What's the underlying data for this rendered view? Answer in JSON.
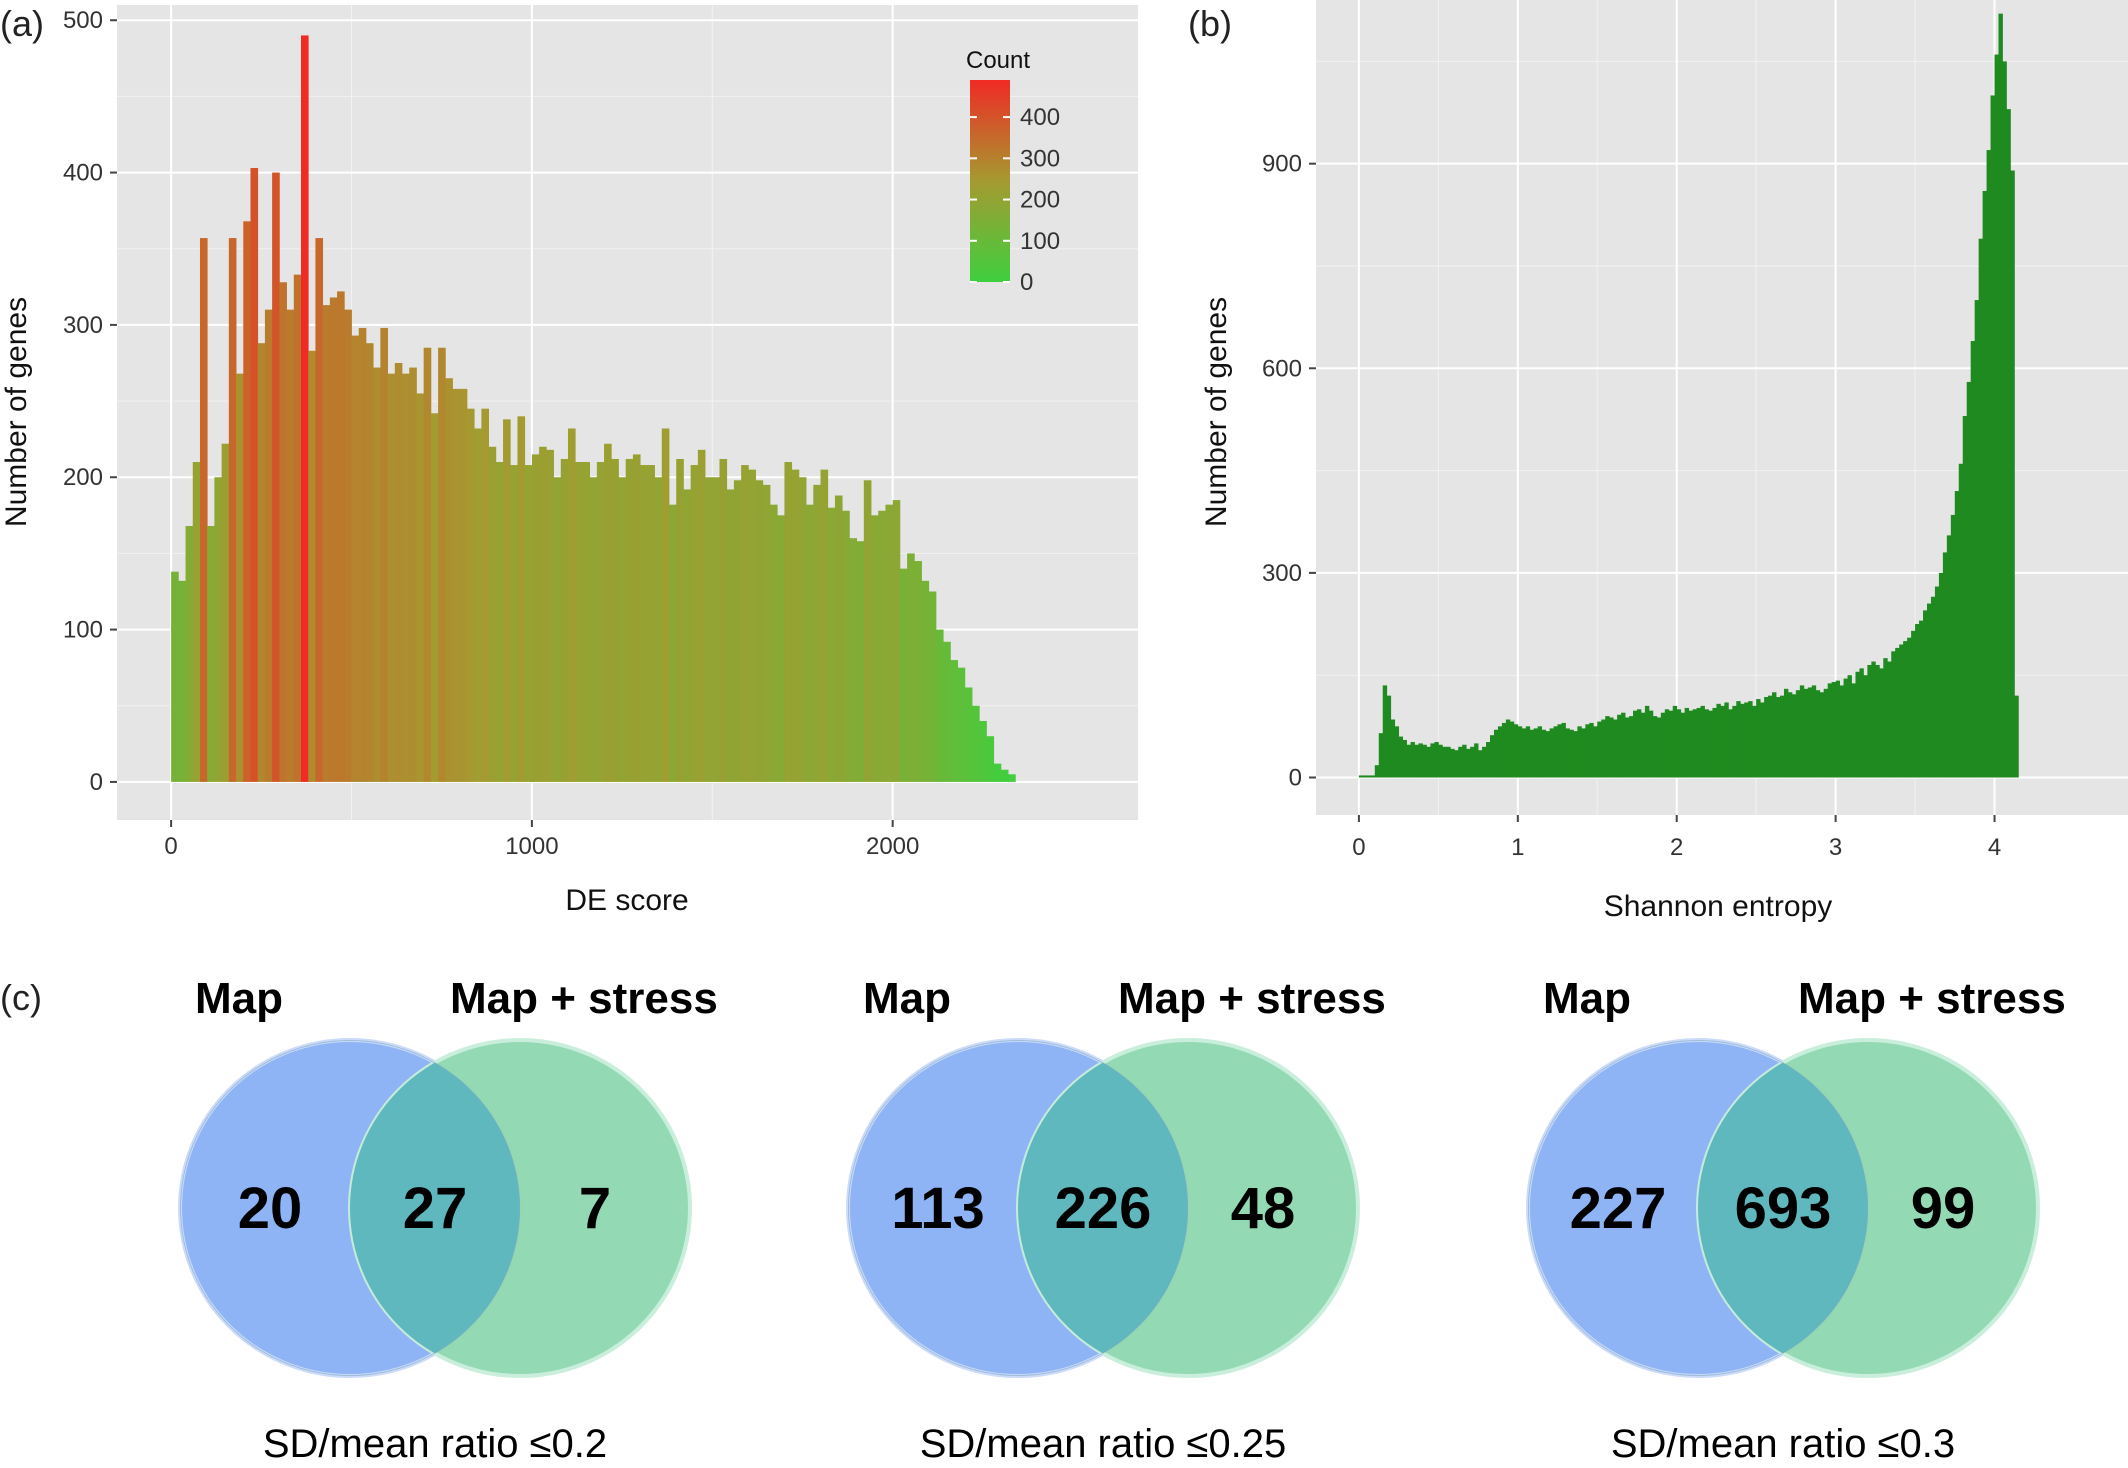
{
  "chart_data": [
    {
      "panel": "(a)",
      "type": "bar",
      "xlabel": "DE score",
      "ylabel": "Number of genes",
      "xlim": [
        -150,
        2680
      ],
      "ylim": [
        -25,
        510
      ],
      "x_ticks": [
        0,
        1000,
        2000
      ],
      "y_ticks": [
        0,
        100,
        200,
        300,
        400,
        500
      ],
      "grid": true,
      "legend": {
        "title": "Count",
        "position": "top-right",
        "ticks": [
          400,
          300,
          200,
          100,
          0
        ],
        "low_color": "#3fcf3f",
        "high_color": "#f02a25",
        "max": 490
      },
      "bin_start": 0,
      "bin_width": 20,
      "values": [
        138,
        132,
        168,
        210,
        357,
        168,
        200,
        222,
        357,
        268,
        368,
        403,
        288,
        310,
        400,
        328,
        310,
        333,
        490,
        283,
        357,
        313,
        318,
        322,
        310,
        293,
        298,
        288,
        272,
        298,
        268,
        275,
        268,
        272,
        255,
        285,
        242,
        285,
        265,
        258,
        258,
        245,
        232,
        245,
        220,
        210,
        238,
        208,
        240,
        208,
        215,
        220,
        218,
        200,
        212,
        232,
        210,
        210,
        200,
        210,
        222,
        212,
        200,
        212,
        215,
        208,
        208,
        200,
        232,
        182,
        212,
        192,
        208,
        218,
        200,
        200,
        212,
        192,
        198,
        208,
        205,
        198,
        195,
        182,
        175,
        210,
        205,
        200,
        182,
        195,
        205,
        180,
        188,
        178,
        160,
        158,
        198,
        175,
        178,
        182,
        185,
        140,
        150,
        145,
        132,
        125,
        100,
        92,
        80,
        75,
        62,
        50,
        40,
        30,
        12,
        8,
        5
      ]
    },
    {
      "panel": "(b)",
      "type": "bar",
      "xlabel": "Shannon entropy",
      "ylabel": "Number of genes",
      "xlim": [
        -0.27,
        4.84
      ],
      "ylim": [
        -55,
        1140
      ],
      "x_ticks": [
        0,
        1,
        2,
        3,
        4
      ],
      "y_ticks": [
        0,
        300,
        600,
        900
      ],
      "grid": true,
      "color": "#1f8a1f",
      "bin_start": 0,
      "bin_width": 0.025,
      "values": [
        3,
        3,
        3,
        3,
        18,
        65,
        135,
        120,
        85,
        75,
        60,
        55,
        48,
        52,
        48,
        50,
        48,
        45,
        50,
        52,
        48,
        45,
        45,
        42,
        40,
        45,
        48,
        42,
        45,
        50,
        40,
        45,
        52,
        62,
        70,
        75,
        80,
        85,
        82,
        78,
        75,
        72,
        75,
        70,
        72,
        75,
        70,
        68,
        72,
        75,
        78,
        80,
        72,
        70,
        68,
        75,
        72,
        78,
        80,
        75,
        82,
        85,
        90,
        88,
        85,
        92,
        95,
        88,
        90,
        98,
        100,
        95,
        105,
        98,
        90,
        88,
        95,
        100,
        98,
        105,
        100,
        95,
        102,
        98,
        100,
        102,
        105,
        100,
        98,
        102,
        108,
        105,
        110,
        100,
        105,
        112,
        108,
        110,
        112,
        105,
        115,
        110,
        118,
        120,
        125,
        118,
        120,
        130,
        125,
        122,
        128,
        135,
        130,
        132,
        135,
        128,
        125,
        130,
        138,
        140,
        142,
        135,
        145,
        150,
        138,
        155,
        160,
        150,
        165,
        170,
        165,
        160,
        175,
        170,
        185,
        190,
        195,
        200,
        205,
        215,
        225,
        230,
        245,
        255,
        265,
        280,
        300,
        330,
        355,
        385,
        420,
        460,
        530,
        580,
        640,
        700,
        790,
        860,
        920,
        1000,
        1060,
        1120,
        1050,
        980,
        890,
        120
      ],
      "peak": 1120
    }
  ],
  "venn": {
    "panel": "(c)",
    "left_label": "Map",
    "right_label": "Map + stress",
    "left_color": "#8ab0f5",
    "right_color": "#8ed8b0",
    "overlap_color": "#5fb8bd",
    "diagrams": [
      {
        "left": "20",
        "both": "27",
        "right": "7",
        "caption": "SD/mean ratio ≤0.2"
      },
      {
        "left": "113",
        "both": "226",
        "right": "48",
        "caption": "SD/mean ratio ≤0.25"
      },
      {
        "left": "227",
        "both": "693",
        "right": "99",
        "caption": "SD/mean ratio ≤0.3"
      }
    ]
  }
}
